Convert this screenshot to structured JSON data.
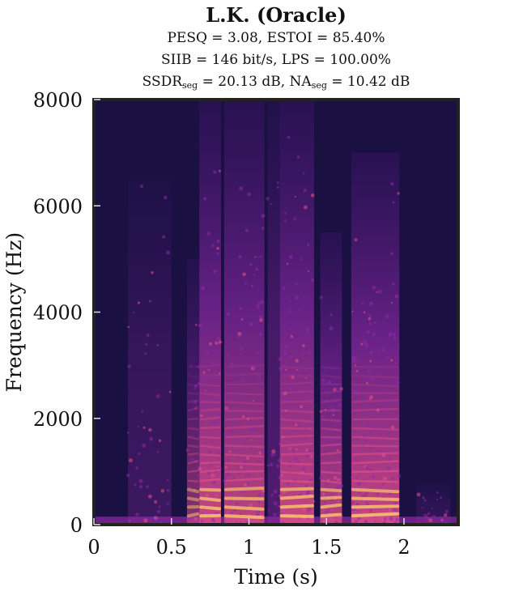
{
  "title": "L.K. (Oracle)",
  "metrics": {
    "pesq": "PESQ = 3.08, ESTOI = 85.40%",
    "siib": "SIIB = 146 bit/s, LPS = 100.00%",
    "ssdr_label": "SSDR",
    "ssdr_sub": "seg",
    "ssdr_value": " = 20.13 dB, NA",
    "na_sub": "seg",
    "na_value": " = 10.42 dB"
  },
  "colors": {
    "background": "#1a1042",
    "low": "#3b1469",
    "mid": "#8e2aa8",
    "high": "#e8508a",
    "peak": "#fdd06a"
  },
  "chart_data": {
    "type": "heatmap",
    "colormap": "magma-like",
    "xlabel": "Time (s)",
    "ylabel": "Frequency (Hz)",
    "xlim": [
      0,
      2.35
    ],
    "ylim": [
      0,
      8000
    ],
    "xticks": [
      0,
      0.5,
      1,
      1.5,
      2
    ],
    "xtick_labels": [
      "0",
      "0.5",
      "1",
      "1.5",
      "2"
    ],
    "yticks": [
      0,
      2000,
      4000,
      6000,
      8000
    ],
    "ytick_labels": [
      "0",
      "2000",
      "4000",
      "6000",
      "8000"
    ],
    "grid": false,
    "speech_segments": [
      {
        "t_start": 0.22,
        "t_end": 0.5,
        "f_max": 6500,
        "intensity": 0.3,
        "voiced": false
      },
      {
        "t_start": 0.6,
        "t_end": 0.68,
        "f_max": 5000,
        "intensity": 0.55,
        "voiced": true
      },
      {
        "t_start": 0.68,
        "t_end": 0.82,
        "f_max": 8000,
        "intensity": 0.85,
        "voiced": true
      },
      {
        "t_start": 0.84,
        "t_end": 1.1,
        "f_max": 8000,
        "intensity": 0.8,
        "voiced": true
      },
      {
        "t_start": 1.12,
        "t_end": 1.2,
        "f_max": 8000,
        "intensity": 0.45,
        "voiced": false
      },
      {
        "t_start": 1.2,
        "t_end": 1.42,
        "f_max": 8000,
        "intensity": 0.85,
        "voiced": true
      },
      {
        "t_start": 1.46,
        "t_end": 1.6,
        "f_max": 5500,
        "intensity": 0.8,
        "voiced": true
      },
      {
        "t_start": 1.66,
        "t_end": 1.97,
        "f_max": 7000,
        "intensity": 0.85,
        "voiced": true
      },
      {
        "t_start": 2.08,
        "t_end": 2.3,
        "f_max": 800,
        "intensity": 0.2,
        "voiced": false
      }
    ]
  }
}
